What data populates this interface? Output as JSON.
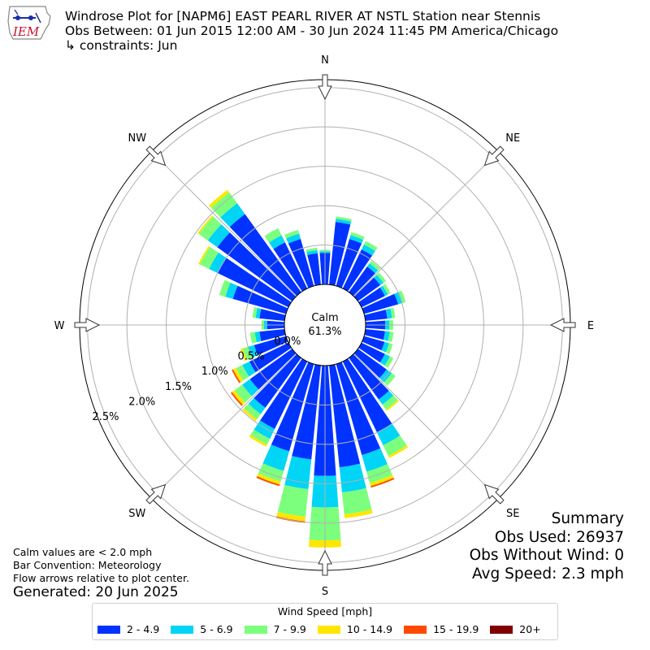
{
  "title": {
    "line1": "Windrose Plot for [NAPM6] EAST PEARL RIVER  AT NSTL Station near Stennis",
    "line2": "Obs Between: 01 Jun 2015 12:00 AM - 30 Jun 2024 11:45 PM America/Chicago",
    "line3": "↳ constraints: Jun"
  },
  "logo": {
    "text": "IEM",
    "color": "#c8102e"
  },
  "notes": {
    "calm": "Calm values are < 2.0 mph",
    "convention": "Bar Convention: Meteorology",
    "flow": "Flow arrows relative to plot center."
  },
  "generated": "Generated: 20 Jun 2025",
  "summary": {
    "heading": "Summary",
    "obs_used": "Obs Used: 26937",
    "obs_without_wind": "Obs Without Wind: 0",
    "avg_speed": "Avg Speed: 2.3 mph"
  },
  "chart_data": {
    "type": "windrose",
    "calm_label": "Calm",
    "calm_value_label": "61.3%",
    "r_max": 2.6,
    "r_ticks": [
      0.0,
      0.5,
      1.0,
      1.5,
      2.0,
      2.5
    ],
    "r_tick_labels": [
      "0.0%",
      "0.5%",
      "1.0%",
      "1.5%",
      "2.0%",
      "2.5%"
    ],
    "compass": [
      "N",
      "NE",
      "E",
      "SE",
      "S",
      "SW",
      "W",
      "NW"
    ],
    "legend_title": "Wind Speed [mph]",
    "bins": [
      {
        "label": "2 - 4.9",
        "color": "#0033ff"
      },
      {
        "label": "5 - 6.9",
        "color": "#00d5f5"
      },
      {
        "label": "7 - 9.9",
        "color": "#7cff7c"
      },
      {
        "label": "10 - 14.9",
        "color": "#ffe600"
      },
      {
        "label": "15 - 19.9",
        "color": "#ff4a00"
      },
      {
        "label": "20+",
        "color": "#800000"
      }
    ],
    "directions_deg": [
      0,
      10,
      20,
      30,
      40,
      50,
      60,
      70,
      80,
      90,
      100,
      110,
      120,
      130,
      140,
      150,
      160,
      170,
      180,
      190,
      200,
      210,
      220,
      230,
      240,
      250,
      260,
      270,
      280,
      290,
      300,
      310,
      320,
      330,
      340,
      350
    ],
    "values": [
      [
        0.4,
        0.02,
        0.02,
        0,
        0,
        0
      ],
      [
        0.8,
        0.04,
        0.03,
        0,
        0,
        0
      ],
      [
        0.62,
        0.05,
        0.04,
        0,
        0,
        0
      ],
      [
        0.55,
        0.07,
        0.05,
        0,
        0,
        0
      ],
      [
        0.4,
        0.05,
        0.04,
        0,
        0,
        0
      ],
      [
        0.35,
        0.05,
        0.04,
        0,
        0,
        0
      ],
      [
        0.33,
        0.04,
        0.04,
        0,
        0,
        0
      ],
      [
        0.45,
        0.06,
        0.04,
        0,
        0,
        0
      ],
      [
        0.28,
        0.06,
        0.04,
        0,
        0,
        0
      ],
      [
        0.25,
        0.05,
        0.05,
        0,
        0,
        0
      ],
      [
        0.25,
        0.06,
        0.05,
        0,
        0,
        0
      ],
      [
        0.27,
        0.06,
        0.05,
        0,
        0,
        0
      ],
      [
        0.33,
        0.07,
        0.05,
        0,
        0,
        0
      ],
      [
        0.45,
        0.08,
        0.06,
        0,
        0,
        0
      ],
      [
        0.65,
        0.08,
        0.08,
        0.02,
        0,
        0
      ],
      [
        1.0,
        0.18,
        0.15,
        0.03,
        0,
        0
      ],
      [
        1.2,
        0.22,
        0.15,
        0.04,
        0.02,
        0
      ],
      [
        1.3,
        0.32,
        0.28,
        0.05,
        0,
        0
      ],
      [
        1.4,
        0.4,
        0.42,
        0.09,
        0,
        0
      ],
      [
        1.2,
        0.38,
        0.35,
        0.06,
        0.02,
        0
      ],
      [
        1.15,
        0.26,
        0.14,
        0.04,
        0.02,
        0
      ],
      [
        0.95,
        0.14,
        0.08,
        0.03,
        0,
        0
      ],
      [
        0.78,
        0.1,
        0.08,
        0.03,
        0,
        0
      ],
      [
        0.66,
        0.12,
        0.12,
        0.04,
        0.02,
        0
      ],
      [
        0.55,
        0.1,
        0.09,
        0.04,
        0.02,
        0
      ],
      [
        0.42,
        0.08,
        0.07,
        0.03,
        0,
        0
      ],
      [
        0.32,
        0.06,
        0.06,
        0,
        0,
        0
      ],
      [
        0.22,
        0.04,
        0.03,
        0,
        0,
        0
      ],
      [
        0.32,
        0.05,
        0.04,
        0,
        0,
        0
      ],
      [
        0.7,
        0.1,
        0.08,
        0,
        0,
        0
      ],
      [
        1.0,
        0.12,
        0.13,
        0.02,
        0,
        0
      ],
      [
        1.17,
        0.15,
        0.14,
        0.02,
        0,
        0
      ],
      [
        1.22,
        0.17,
        0.17,
        0.04,
        0,
        0
      ],
      [
        0.65,
        0.1,
        0.1,
        0,
        0,
        0
      ],
      [
        0.62,
        0.07,
        0.05,
        0,
        0,
        0
      ],
      [
        0.4,
        0.04,
        0.03,
        0,
        0,
        0
      ]
    ]
  }
}
